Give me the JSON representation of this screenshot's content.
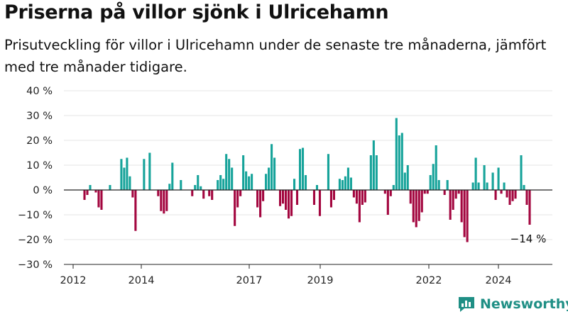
{
  "title": "Priserna på villor sjönk i Ulricehamn",
  "subtitle": "Prisutveckling för villor i Ulricehamn under de senaste tre månaderna, jämfört med tre månader tidigare.",
  "brand": "Newsworthy",
  "colors": {
    "positive": "#16a39a",
    "negative": "#a3063f",
    "axis": "#222222",
    "grid": "#e6e6e6"
  },
  "chart_data": {
    "type": "bar",
    "ylim": [
      -30,
      40
    ],
    "y_ticks": [
      40,
      30,
      20,
      10,
      0,
      -10,
      -20,
      -30
    ],
    "y_tick_labels": [
      "40 %",
      "30 %",
      "20 %",
      "10 %",
      "0 %",
      "−10 %",
      "−20 %",
      "−30 %"
    ],
    "x_ticks": [
      "2012",
      "2014",
      "2017",
      "2019",
      "2022",
      "2024"
    ],
    "grid": "horizontal",
    "annotation": "−14 %",
    "unit": "%",
    "values": [
      -4,
      -2,
      2,
      0,
      -1,
      -7,
      -8,
      0,
      0,
      2,
      0,
      0,
      0,
      12.5,
      9,
      13,
      5.5,
      -3,
      -16.5,
      0,
      0,
      12.5,
      0,
      15,
      0,
      0,
      -2.5,
      -8.5,
      -9.5,
      -8.5,
      2.5,
      11,
      0,
      0,
      4,
      0,
      0,
      0,
      -2.5,
      2,
      6,
      1.5,
      -3.5,
      0,
      -2.5,
      -4,
      0,
      4,
      6,
      4.5,
      14.5,
      12.5,
      9,
      -14.5,
      -7,
      -2.5,
      14,
      7.5,
      5.5,
      6.5,
      0,
      -7,
      -11,
      -4.5,
      6.5,
      9,
      18.5,
      13,
      0,
      -6.5,
      -5.5,
      -8,
      -11.5,
      -10.5,
      4.5,
      -6,
      16.5,
      17,
      6,
      0,
      0,
      -6,
      2,
      -10.5,
      0,
      0,
      14.5,
      -7,
      -4,
      0,
      4.5,
      4,
      5.5,
      9,
      5,
      -3,
      -5.5,
      -13,
      -6,
      -5,
      0,
      14,
      20,
      14,
      0,
      0,
      -1.5,
      -10,
      -2.5,
      2,
      29,
      22,
      23,
      7,
      10,
      -5.5,
      -13,
      -15,
      -12.5,
      -9,
      -1.5,
      -1.5,
      6,
      10.5,
      18,
      4,
      0,
      -2,
      4,
      -12,
      -8,
      -3.5,
      -1.5,
      -13,
      -19,
      -21,
      0,
      3,
      13,
      3,
      0,
      10,
      3,
      0,
      7,
      -4,
      9,
      -1.5,
      3,
      -3,
      -6,
      -4.5,
      -3.5,
      0,
      14,
      2,
      -6,
      -14
    ]
  }
}
